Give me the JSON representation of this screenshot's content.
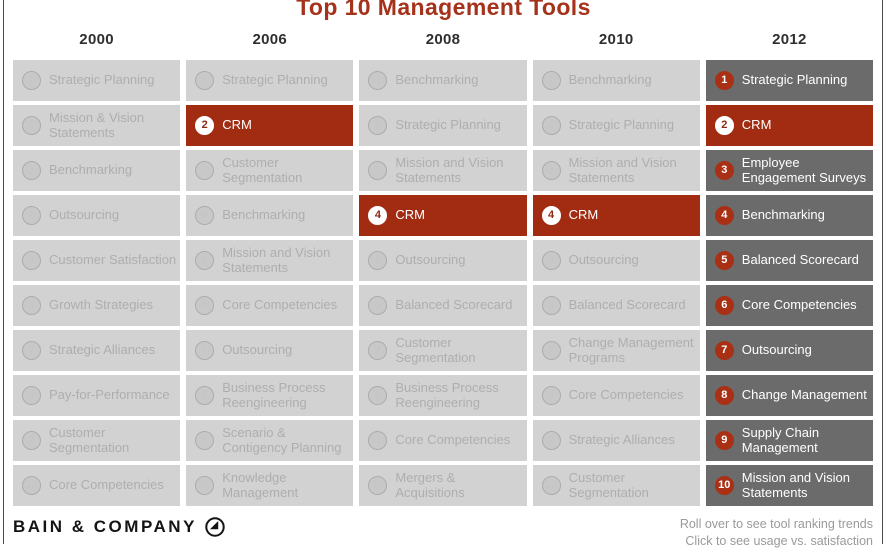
{
  "chart_data": {
    "type": "table",
    "title": "Top 10 Management Tools",
    "years": [
      "2000",
      "2006",
      "2008",
      "2010",
      "2012"
    ],
    "ranks": [
      "1",
      "2",
      "3",
      "4",
      "5",
      "6",
      "7",
      "8",
      "9",
      "10"
    ],
    "rankings": {
      "2000": [
        "Strategic Planning",
        "Mission & Vision Statements",
        "Benchmarking",
        "Outsourcing",
        "Customer Satisfaction",
        "Growth Strategies",
        "Strategic Alliances",
        "Pay-for-Performance",
        "Customer Segmentation",
        "Core Competencies"
      ],
      "2006": [
        "Strategic Planning",
        "CRM",
        "Customer Segmentation",
        "Benchmarking",
        "Mission and Vision Statements",
        "Core Competencies",
        "Outsourcing",
        "Business Process Reengineering",
        "Scenario & Contigency Planning",
        "Knowledge Management"
      ],
      "2008": [
        "Benchmarking",
        "Strategic Planning",
        "Mission and Vision Statements",
        "CRM",
        "Outsourcing",
        "Balanced Scorecard",
        "Customer Segmentation",
        "Business Process Reengineering",
        "Core Competencies",
        "Mergers & Acquisitions"
      ],
      "2010": [
        "Benchmarking",
        "Strategic Planning",
        "Mission and Vision Statements",
        "CRM",
        "Outsourcing",
        "Balanced Scorecard",
        "Change Management Programs",
        "Core Competencies",
        "Strategic Alliances",
        "Customer Segmentation"
      ],
      "2012": [
        "Strategic Planning",
        "CRM",
        "Employee Engagement Surveys",
        "Benchmarking",
        "Balanced Scorecard",
        "Core Competencies",
        "Outsourcing",
        "Change Management",
        "Supply Chain Management",
        "Mission and Vision Statements"
      ]
    },
    "highlighted_tool": "CRM",
    "emphasized_year": "2012",
    "legend_position": "none"
  },
  "colors": {
    "title_red": "#A5321B",
    "highlight_red": "#A22C12",
    "emphasis_gray": "#6B6B6B",
    "muted_cell_gray": "#D2D2D2",
    "muted_text_gray": "#AEAEAE"
  },
  "footer": {
    "brand": "BAIN & COMPANY",
    "hint_line1": "Roll over to see tool ranking trends",
    "hint_line2": "Click to see usage vs. satisfaction"
  }
}
